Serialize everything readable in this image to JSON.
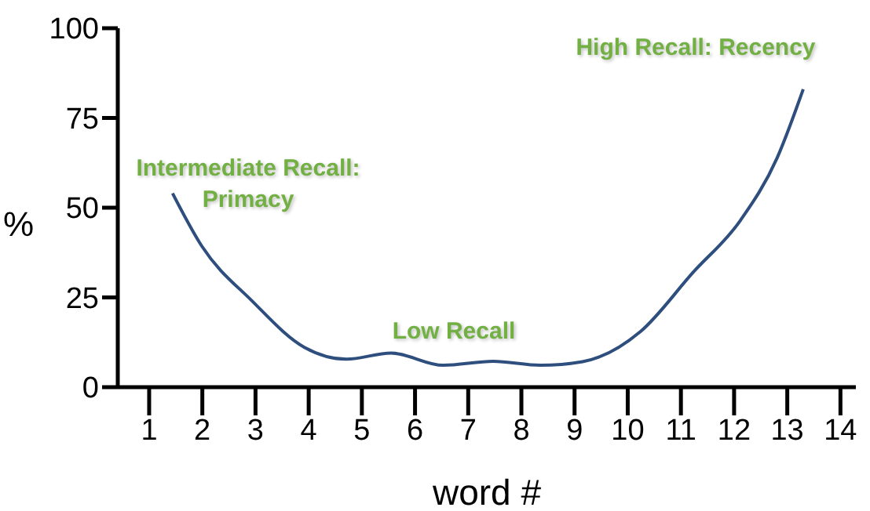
{
  "chart_data": {
    "type": "line",
    "xlabel": "word #",
    "ylabel": "%",
    "x": [
      1.44,
      1.99,
      2.93,
      3.92,
      4.71,
      5.55,
      6.53,
      7.47,
      8.36,
      9.15,
      10.24,
      11.23,
      12.12,
      12.81,
      13.3
    ],
    "series": [
      {
        "color": "#2e4e7e",
        "values": [
          54,
          39.3,
          24.1,
          11.1,
          7.8,
          9.5,
          6.1,
          7.2,
          6.1,
          7.1,
          15.5,
          32,
          46.5,
          63.9,
          83
        ]
      }
    ],
    "xlim": [
      0.41,
      14.29
    ],
    "xticks": [
      1,
      2,
      3,
      4,
      5,
      6,
      7,
      8,
      9,
      10,
      11,
      12,
      13,
      14
    ],
    "ylim": [
      0,
      100
    ],
    "yticks": [
      0,
      25,
      50,
      75,
      100
    ],
    "grid": false,
    "marker": "none",
    "line_style": "solid",
    "annotations": [
      "Intermediate Recall:\nPrimacy",
      "Low Recall",
      "High Recall: Recency"
    ]
  }
}
